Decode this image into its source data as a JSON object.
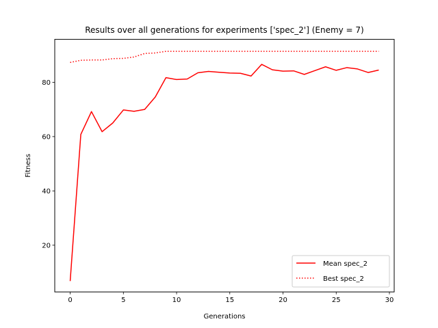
{
  "chart_data": {
    "type": "line",
    "title": "Results over all generations for experiments ['spec_2'] (Enemy = 7)",
    "xlabel": "Generations",
    "ylabel": "Fitness",
    "xlim": [
      -1.45,
      30.45
    ],
    "ylim": [
      2.8,
      95.8
    ],
    "xticks": [
      0,
      5,
      10,
      15,
      20,
      25,
      30
    ],
    "yticks": [
      20,
      40,
      60,
      80
    ],
    "grid": false,
    "legend_position": "lower-right",
    "x": [
      0,
      1,
      2,
      3,
      4,
      5,
      6,
      7,
      8,
      9,
      10,
      11,
      12,
      13,
      14,
      15,
      16,
      17,
      18,
      19,
      20,
      21,
      22,
      23,
      24,
      25,
      26,
      27,
      28,
      29
    ],
    "series": [
      {
        "name": "Mean spec_2",
        "style": "solid",
        "color": "#ff0000",
        "values": [
          6.8,
          60.8,
          69.2,
          61.8,
          65.0,
          69.8,
          69.3,
          70.0,
          74.6,
          81.7,
          81.0,
          81.2,
          83.5,
          84.0,
          83.7,
          83.4,
          83.3,
          82.3,
          86.6,
          84.6,
          84.1,
          84.2,
          82.9,
          84.3,
          85.7,
          84.4,
          85.4,
          84.9,
          83.6,
          84.5
        ]
      },
      {
        "name": "Best spec_2",
        "style": "dotted",
        "color": "#ff0000",
        "values": [
          87.3,
          88.1,
          88.2,
          88.2,
          88.7,
          88.8,
          89.3,
          90.6,
          90.8,
          91.4,
          91.4,
          91.4,
          91.4,
          91.4,
          91.4,
          91.4,
          91.4,
          91.4,
          91.4,
          91.4,
          91.4,
          91.4,
          91.4,
          91.4,
          91.4,
          91.4,
          91.4,
          91.4,
          91.4,
          91.4
        ]
      }
    ]
  }
}
